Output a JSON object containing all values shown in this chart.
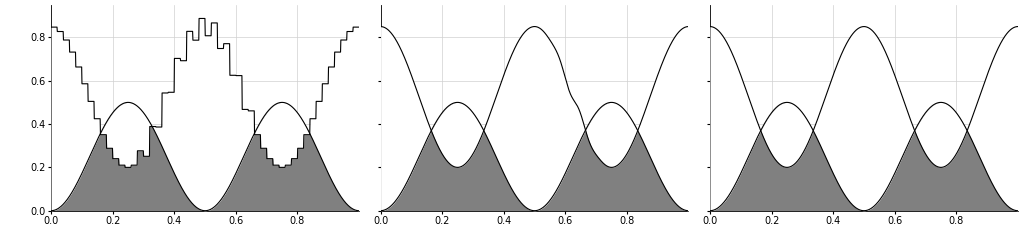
{
  "xlim": [
    0,
    1
  ],
  "ylim": [
    0,
    0.95
  ],
  "yticks": [
    0,
    0.2,
    0.4,
    0.6,
    0.8
  ],
  "xticks": [
    0,
    0.2,
    0.4,
    0.6,
    0.8
  ],
  "fill_color": "#808080",
  "line_color": "#000000",
  "bg_color": "#ffffff",
  "grid_color": "#d0d0d0",
  "n_points": 1000
}
